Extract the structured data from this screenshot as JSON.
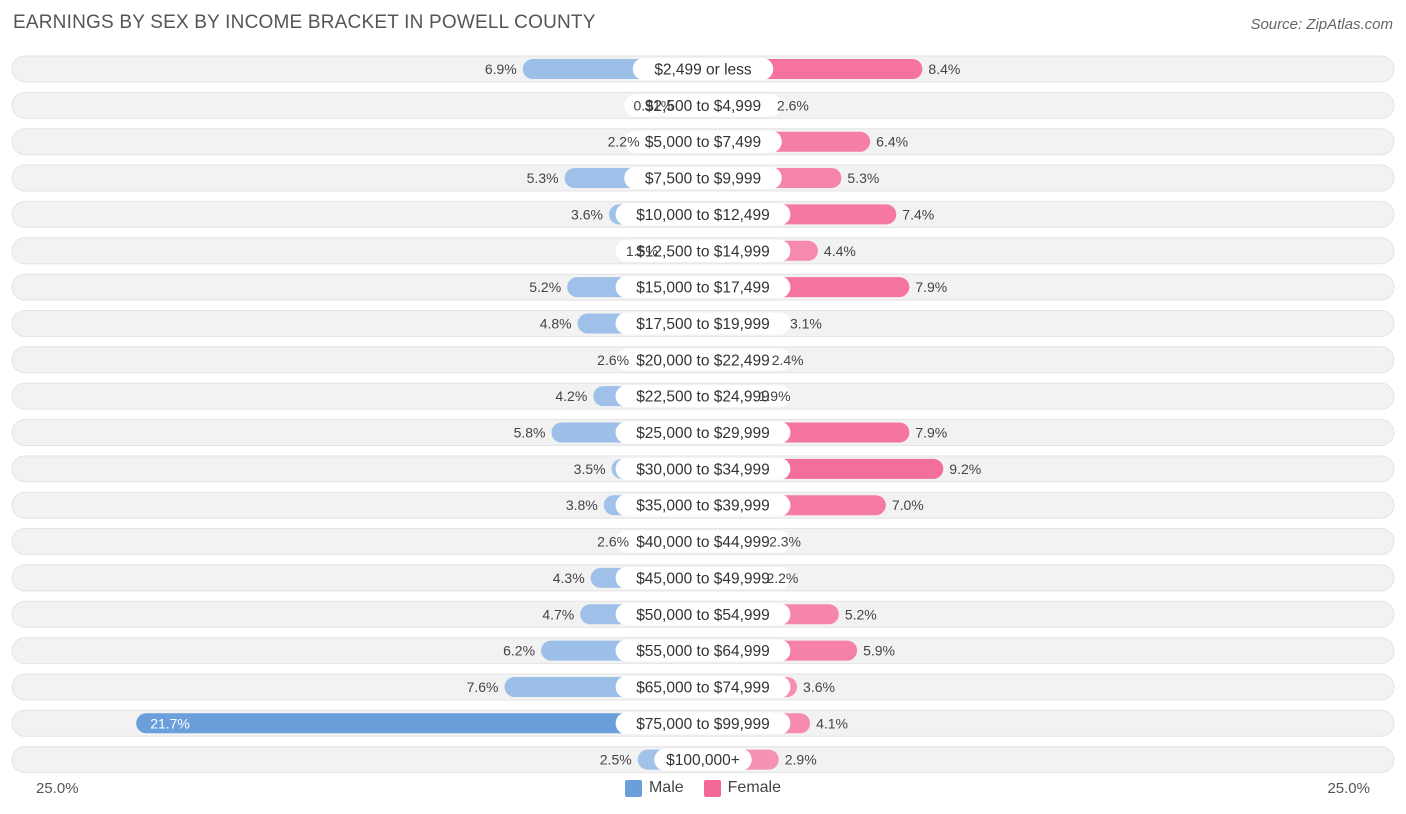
{
  "title": "EARNINGS BY SEX BY INCOME BRACKET IN POWELL COUNTY",
  "source": "Source: ZipAtlas.com",
  "colors": {
    "male": "#a4c4ea",
    "male_highlight": "#6a9fdc",
    "female": "#f7a3bd",
    "female_highlight": "#f46896",
    "row_bg": "#f2f2f2"
  },
  "chart_data": {
    "type": "bar",
    "orientation": "horizontal-diverging",
    "title": "EARNINGS BY SEX BY INCOME BRACKET IN POWELL COUNTY",
    "xlim": [
      -25.0,
      25.0
    ],
    "axis_left_label": "25.0%",
    "axis_right_label": "25.0%",
    "legend": [
      "Male",
      "Female"
    ],
    "categories": [
      "$2,499 or less",
      "$2,500 to $4,999",
      "$5,000 to $7,499",
      "$7,500 to $9,999",
      "$10,000 to $12,499",
      "$12,500 to $14,999",
      "$15,000 to $17,499",
      "$17,500 to $19,999",
      "$20,000 to $22,499",
      "$22,500 to $24,999",
      "$25,000 to $29,999",
      "$30,000 to $34,999",
      "$35,000 to $39,999",
      "$40,000 to $44,999",
      "$45,000 to $49,999",
      "$50,000 to $54,999",
      "$55,000 to $64,999",
      "$65,000 to $74,999",
      "$75,000 to $99,999",
      "$100,000+"
    ],
    "series": [
      {
        "name": "Male",
        "values": [
          6.9,
          0.91,
          2.2,
          5.3,
          3.6,
          1.5,
          5.2,
          4.8,
          2.6,
          4.2,
          5.8,
          3.5,
          3.8,
          2.6,
          4.3,
          4.7,
          6.2,
          7.6,
          21.7,
          2.5
        ],
        "labels": [
          "6.9%",
          "0.91%",
          "2.2%",
          "5.3%",
          "3.6%",
          "1.5%",
          "5.2%",
          "4.8%",
          "2.6%",
          "4.2%",
          "5.8%",
          "3.5%",
          "3.8%",
          "2.6%",
          "4.3%",
          "4.7%",
          "6.2%",
          "7.6%",
          "21.7%",
          "2.5%"
        ]
      },
      {
        "name": "Female",
        "values": [
          8.4,
          2.6,
          6.4,
          5.3,
          7.4,
          4.4,
          7.9,
          3.1,
          2.4,
          1.9,
          7.9,
          9.2,
          7.0,
          2.3,
          2.2,
          5.2,
          5.9,
          3.6,
          4.1,
          2.9
        ],
        "labels": [
          "8.4%",
          "2.6%",
          "6.4%",
          "5.3%",
          "7.4%",
          "4.4%",
          "7.9%",
          "3.1%",
          "2.4%",
          "1.9%",
          "7.9%",
          "9.2%",
          "7.0%",
          "2.3%",
          "2.2%",
          "5.2%",
          "5.9%",
          "3.6%",
          "4.1%",
          "2.9%"
        ]
      }
    ]
  }
}
